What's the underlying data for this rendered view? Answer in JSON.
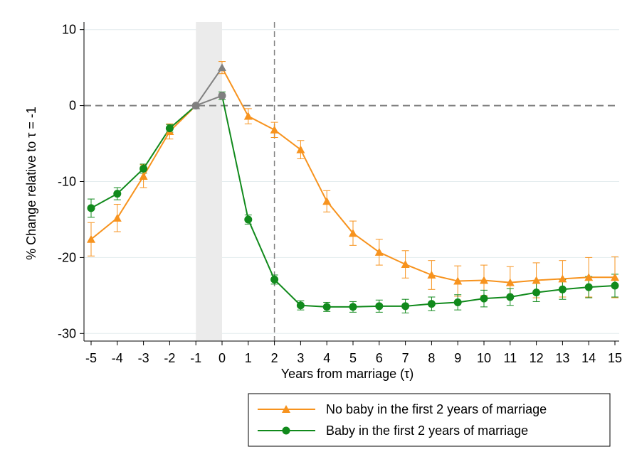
{
  "chart_data": {
    "type": "line",
    "title": "",
    "xlabel": "Years from marriage (τ)",
    "ylabel": "% Change relative to τ = -1",
    "xlim": [
      -5,
      15
    ],
    "ylim": [
      -31,
      11
    ],
    "x_ticks": [
      -5,
      -4,
      -3,
      -2,
      -1,
      0,
      1,
      2,
      3,
      4,
      5,
      6,
      7,
      8,
      9,
      10,
      11,
      12,
      13,
      14,
      15
    ],
    "y_ticks": [
      10,
      0,
      -10,
      -20,
      -30
    ],
    "grid": "horizontal",
    "shaded_band": [
      -1,
      0
    ],
    "vline_x": 2,
    "hline_y": 0,
    "legend_position": "bottom-right",
    "colors": {
      "orange": "#f7931e",
      "green": "#118a1c",
      "gray": "#808080"
    },
    "x": [
      -5,
      -4,
      -3,
      -2,
      -1,
      0,
      1,
      2,
      3,
      4,
      5,
      6,
      7,
      8,
      9,
      10,
      11,
      12,
      13,
      14,
      15
    ],
    "series": [
      {
        "name": "No baby in the first 2 years of marriage",
        "color": "#f7931e",
        "marker": "triangle",
        "values": [
          -17.6,
          -14.8,
          -9.3,
          -3.4,
          0,
          5.0,
          -1.4,
          -3.2,
          -5.8,
          -12.6,
          -16.8,
          -19.3,
          -20.9,
          -22.3,
          -23.1,
          -23.0,
          -23.3,
          -23.0,
          -22.8,
          -22.6,
          -22.6
        ],
        "err": [
          2.2,
          1.8,
          1.5,
          1.0,
          0,
          0.8,
          1.0,
          1.0,
          1.2,
          1.4,
          1.6,
          1.7,
          1.8,
          1.9,
          2.0,
          2.0,
          2.1,
          2.3,
          2.4,
          2.6,
          2.7
        ]
      },
      {
        "name": "Baby in the first 2 years of marriage",
        "color": "#118a1c",
        "marker": "circle",
        "values": [
          -13.5,
          -11.6,
          -8.3,
          -3.0,
          0,
          1.3,
          -15.0,
          -22.9,
          -26.3,
          -26.5,
          -26.5,
          -26.4,
          -26.4,
          -26.1,
          -25.9,
          -25.4,
          -25.2,
          -24.6,
          -24.2,
          -23.9,
          -23.7
        ],
        "err": [
          1.2,
          0.8,
          0.6,
          0.5,
          0,
          0.5,
          0.6,
          0.6,
          0.6,
          0.6,
          0.7,
          0.8,
          0.9,
          0.9,
          1.0,
          1.1,
          1.1,
          1.2,
          1.3,
          1.4,
          1.5
        ]
      }
    ]
  }
}
